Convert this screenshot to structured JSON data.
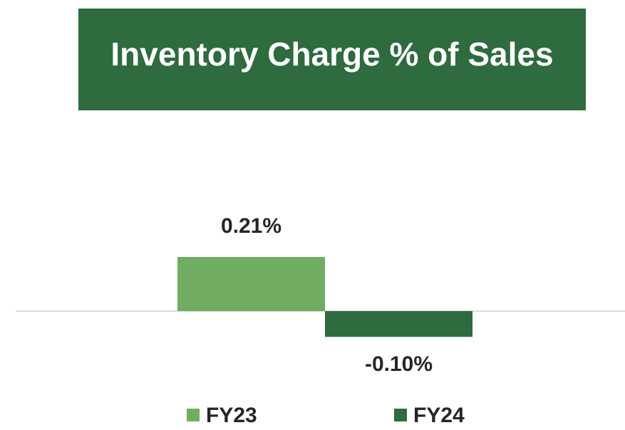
{
  "chart_data": {
    "type": "bar",
    "title": "Inventory Charge % of Sales",
    "categories": [
      null
    ],
    "series": [
      {
        "name": "FY23",
        "color": "#70ad60",
        "values": [
          0.21
        ],
        "value_labels": [
          "0.21%"
        ]
      },
      {
        "name": "FY24",
        "color": "#2e6b3f",
        "values": [
          -0.1
        ],
        "value_labels": [
          "-0.10%"
        ]
      }
    ],
    "title_background": "#2e6b3f"
  }
}
